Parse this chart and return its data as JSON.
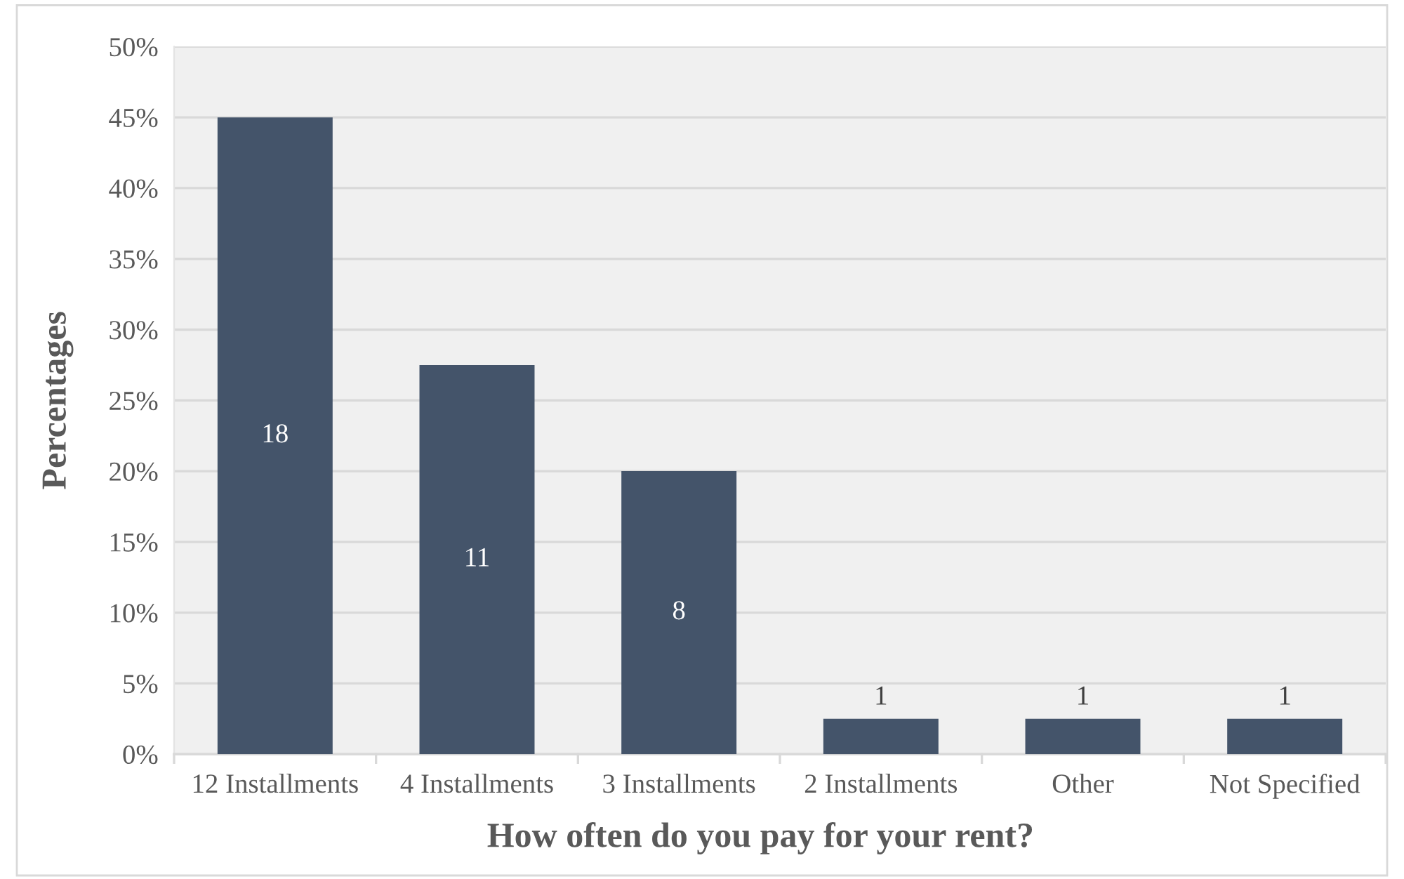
{
  "chart_data": {
    "type": "bar",
    "xlabel": "How often do you pay for your rent?",
    "ylabel": "Percentages",
    "categories": [
      "12 Installments",
      "4 Installments",
      "3 Installments",
      "2 Installments",
      "Other",
      "Not Specified"
    ],
    "values": [
      45,
      27.5,
      20,
      2.5,
      2.5,
      2.5
    ],
    "color": "#44546a",
    "ylim": [
      0,
      50
    ],
    "yticks": [
      {
        "value": 0,
        "label": "0%"
      },
      {
        "value": 5,
        "label": "5%"
      },
      {
        "value": 10,
        "label": "10%"
      },
      {
        "value": 15,
        "label": "15%"
      },
      {
        "value": 20,
        "label": "20%"
      },
      {
        "value": 25,
        "label": "25%"
      },
      {
        "value": 30,
        "label": "30%"
      },
      {
        "value": 35,
        "label": "35%"
      },
      {
        "value": 40,
        "label": "40%"
      },
      {
        "value": 45,
        "label": "45%"
      },
      {
        "value": 50,
        "label": "50%"
      }
    ],
    "annotations": [
      "18",
      "11",
      "8",
      "1",
      "1",
      "1"
    ],
    "grid": "y"
  }
}
